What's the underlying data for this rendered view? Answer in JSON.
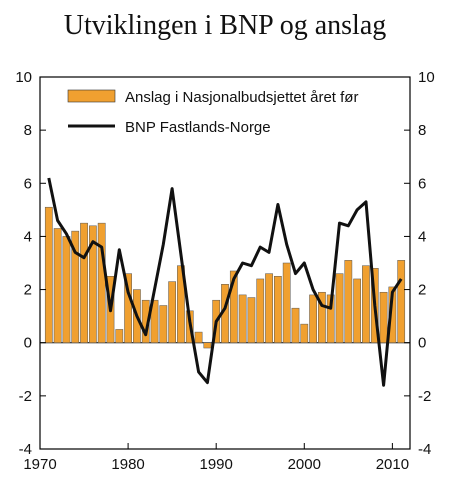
{
  "chart_data": {
    "type": "bar",
    "title": "Utviklingen i BNP og anslag",
    "xlabel": "",
    "ylabel": "",
    "x": [
      1971,
      1972,
      1973,
      1974,
      1975,
      1976,
      1977,
      1978,
      1979,
      1980,
      1981,
      1982,
      1983,
      1984,
      1985,
      1986,
      1987,
      1988,
      1989,
      1990,
      1991,
      1992,
      1993,
      1994,
      1995,
      1996,
      1997,
      1998,
      1999,
      2000,
      2001,
      2002,
      2003,
      2004,
      2005,
      2006,
      2007,
      2008,
      2009,
      2010,
      2011
    ],
    "xlim": [
      1970,
      2012
    ],
    "ylim": [
      -4,
      10
    ],
    "x_ticks": [
      "1970",
      "1980",
      "1990",
      "2000",
      "2010"
    ],
    "x_tick_values": [
      1970,
      1980,
      1990,
      2000,
      2010
    ],
    "y_ticks": [
      "-4",
      "-2",
      "0",
      "2",
      "4",
      "6",
      "8",
      "10"
    ],
    "y_tick_values": [
      -4,
      -2,
      0,
      2,
      4,
      6,
      8,
      10
    ],
    "series": [
      {
        "name": "Anslag i Nasjonalbudsjettet året før",
        "kind": "bar",
        "color": "#f0a030",
        "values": [
          5.1,
          4.3,
          4.0,
          4.2,
          4.5,
          4.4,
          4.5,
          2.5,
          0.5,
          2.6,
          2.0,
          1.6,
          1.6,
          1.4,
          2.3,
          2.9,
          1.2,
          0.4,
          -0.2,
          1.6,
          2.2,
          2.7,
          1.8,
          1.7,
          2.4,
          2.6,
          2.5,
          3.0,
          1.3,
          0.7,
          1.8,
          1.9,
          1.8,
          2.6,
          3.1,
          2.4,
          2.9,
          2.8,
          1.9,
          2.1,
          3.1
        ]
      },
      {
        "name": "BNP Fastlands-Norge",
        "kind": "line",
        "color": "#111111",
        "values": [
          6.2,
          4.6,
          4.1,
          3.4,
          3.2,
          3.8,
          3.6,
          1.2,
          3.5,
          1.9,
          1.0,
          0.3,
          2.0,
          3.7,
          5.8,
          3.3,
          0.8,
          -1.1,
          -1.5,
          0.8,
          1.3,
          2.4,
          3.0,
          2.9,
          3.6,
          3.4,
          5.2,
          3.7,
          2.6,
          3.0,
          2.0,
          1.4,
          1.3,
          4.5,
          4.4,
          5.0,
          5.3,
          1.4,
          -1.6,
          1.9,
          2.4
        ]
      }
    ],
    "grid": false,
    "legend_position": "top"
  }
}
